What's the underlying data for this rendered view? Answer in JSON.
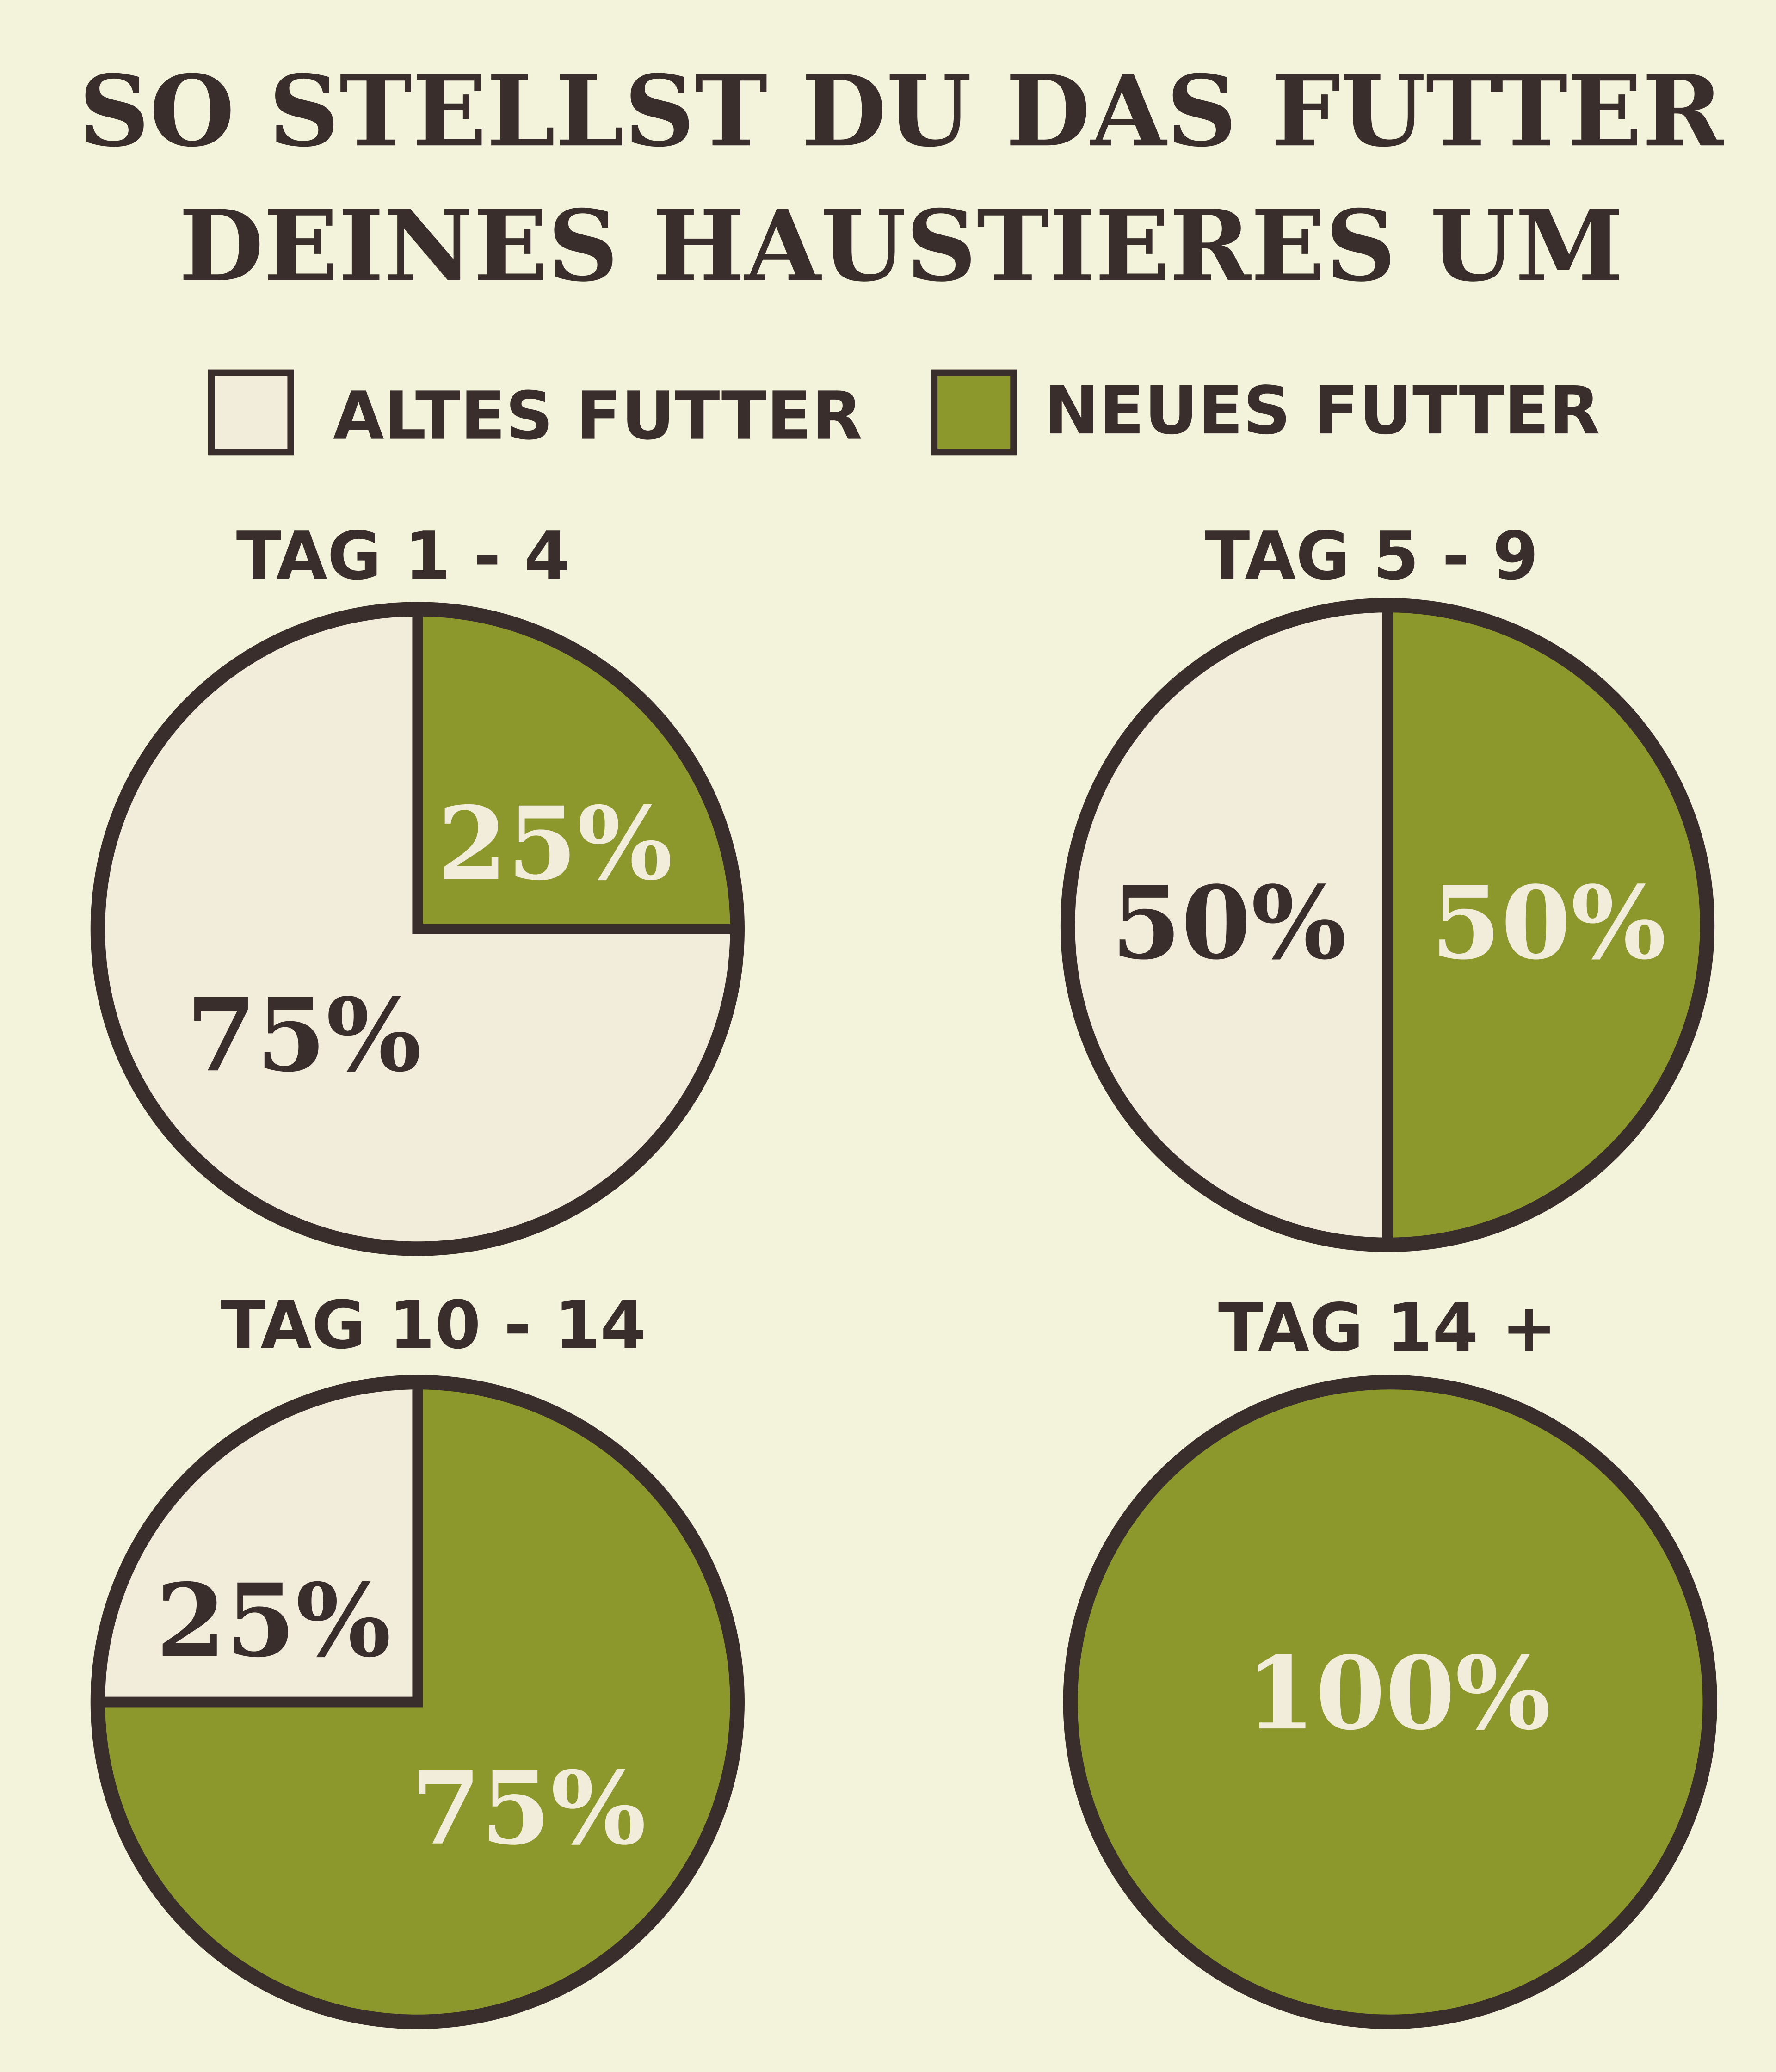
{
  "chart_data": {
    "type": "pie",
    "title": [
      "SO STELLST DU DAS FUTTER",
      "DEINES HAUSTIERES UM"
    ],
    "legend": {
      "placement": "top",
      "entries": [
        {
          "name": "ALTES FUTTER",
          "color": "#f2ecdb"
        },
        {
          "name": "NEUES FUTTER",
          "color": "#8c982c"
        }
      ]
    },
    "colors": {
      "background": "#f3f3dc",
      "outline": "#3a2e2c",
      "old": "#f2ecdb",
      "new": "#8c982c",
      "label_on_new": "#f2ecdb",
      "label_on_old": "#3a2e2c"
    },
    "pies": [
      {
        "title": "TAG 1 - 4",
        "slices": [
          {
            "series": "ALTES FUTTER",
            "value": 75,
            "label": "75%"
          },
          {
            "series": "NEUES FUTTER",
            "value": 25,
            "label": "25%"
          }
        ]
      },
      {
        "title": "TAG 5 - 9",
        "slices": [
          {
            "series": "ALTES FUTTER",
            "value": 50,
            "label": "50%"
          },
          {
            "series": "NEUES FUTTER",
            "value": 50,
            "label": "50%"
          }
        ]
      },
      {
        "title": "TAG 10 - 14",
        "slices": [
          {
            "series": "ALTES FUTTER",
            "value": 25,
            "label": "25%"
          },
          {
            "series": "NEUES FUTTER",
            "value": 75,
            "label": "75%"
          }
        ]
      },
      {
        "title": "TAG 14 +",
        "slices": [
          {
            "series": "ALTES FUTTER",
            "value": 0,
            "label": ""
          },
          {
            "series": "NEUES FUTTER",
            "value": 100,
            "label": "100%"
          }
        ]
      }
    ]
  }
}
